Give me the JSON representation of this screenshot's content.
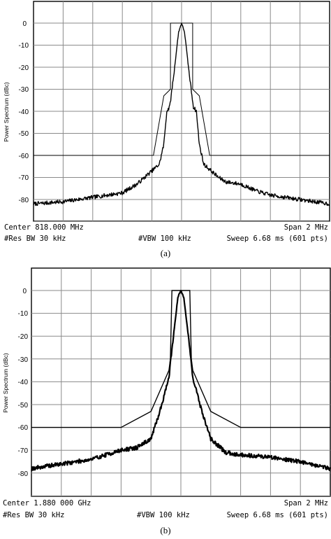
{
  "chart_data": [
    {
      "type": "line",
      "panel": "(a)",
      "ylabel": "Power Spectrum (dBc)",
      "ylim": [
        -85,
        3
      ],
      "yticks": [
        "0",
        "-10",
        "-20",
        "-30",
        "-40",
        "-50",
        "-60",
        "-70",
        "-80"
      ],
      "xlim": [
        -1,
        1
      ],
      "x_unit": "MHz offset from center",
      "grid": true,
      "footer": {
        "center": "Center 818.000 MHz",
        "span": "Span 2 MHz",
        "rbw": "#Res BW 30 kHz",
        "vbw": "#VBW 100 kHz",
        "sweep": "Sweep 6.68 ms (601 pts)"
      },
      "caption": "(a)",
      "series": [
        {
          "role": "mask",
          "x": [
            -1,
            -0.2,
            -0.19,
            -0.12,
            -0.075,
            -0.075,
            0.075,
            0.075,
            0.12,
            0.19,
            0.2,
            1
          ],
          "values": [
            -60,
            -60,
            -60,
            -33,
            -30,
            0,
            0,
            -30,
            -33,
            -60,
            -60,
            -60
          ]
        },
        {
          "role": "spectrum",
          "x": [
            -1,
            -0.8,
            -0.6,
            -0.5,
            -0.4,
            -0.3,
            -0.25,
            -0.2,
            -0.15,
            -0.12,
            -0.1,
            -0.08,
            -0.05,
            -0.02,
            0,
            0.02,
            0.05,
            0.08,
            0.1,
            0.12,
            0.15,
            0.2,
            0.25,
            0.3,
            0.4,
            0.5,
            0.6,
            0.8,
            1
          ],
          "values": [
            -82,
            -81,
            -79,
            -78,
            -77,
            -73,
            -70,
            -67,
            -64,
            -55,
            -40,
            -38,
            -22,
            -4,
            0,
            -4,
            -22,
            -38,
            -40,
            -55,
            -64,
            -67,
            -70,
            -72,
            -73,
            -76,
            -78,
            -80,
            -82
          ]
        }
      ]
    },
    {
      "type": "line",
      "panel": "(b)",
      "ylabel": "Power Spectrum (dBc)",
      "ylim": [
        -85,
        3
      ],
      "yticks": [
        "0",
        "-10",
        "-20",
        "-30",
        "-40",
        "-50",
        "-60",
        "-70",
        "-80"
      ],
      "xlim": [
        -1,
        1
      ],
      "x_unit": "MHz offset from center",
      "grid": true,
      "footer": {
        "center": "Center 1.880 000 GHz",
        "span": "Span 2 MHz",
        "rbw": "#Res BW 30 kHz",
        "vbw": "#VBW 100 kHz",
        "sweep": "Sweep 6.68 ms (601 pts)"
      },
      "caption": "(b)",
      "series": [
        {
          "role": "mask",
          "x": [
            -1,
            -0.6,
            -0.4,
            -0.2,
            -0.08,
            -0.07,
            -0.06,
            0.06,
            0.07,
            0.08,
            0.2,
            0.4,
            0.6,
            1
          ],
          "values": [
            -60,
            -60,
            -60,
            -53,
            -35,
            -30,
            0,
            0,
            -30,
            -35,
            -53,
            -60,
            -60,
            -60
          ]
        },
        {
          "role": "spectrum",
          "x": [
            -1,
            -0.8,
            -0.6,
            -0.4,
            -0.3,
            -0.2,
            -0.15,
            -0.12,
            -0.08,
            -0.05,
            -0.02,
            0,
            0.02,
            0.05,
            0.08,
            0.12,
            0.15,
            0.2,
            0.3,
            0.4,
            0.6,
            0.8,
            1
          ],
          "values": [
            -78,
            -76,
            -74,
            -70,
            -69,
            -65,
            -55,
            -48,
            -38,
            -20,
            -3,
            0,
            -3,
            -20,
            -38,
            -48,
            -55,
            -65,
            -71,
            -72,
            -73,
            -75,
            -78
          ]
        }
      ]
    }
  ]
}
